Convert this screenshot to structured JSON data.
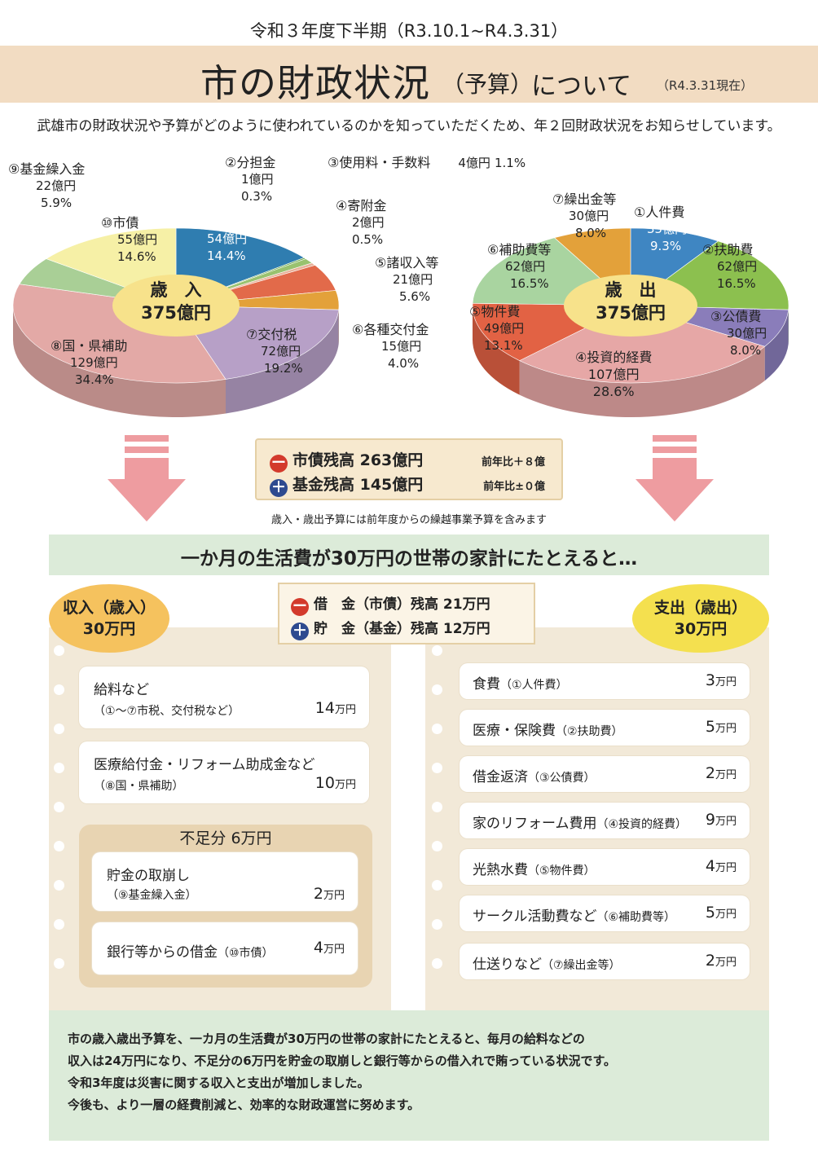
{
  "header": {
    "period": "令和３年度下半期（R3.10.1~R4.3.31）",
    "title": "市の財政状況",
    "title_paren": "（予算）",
    "title_rest": "について",
    "as_of": "（R4.3.31現在）",
    "intro": "武雄市の財政状況や予算がどのように使われているのかを知っていただくため、年２回財政状況をお知らせしています。"
  },
  "colors": {
    "tax": "#2f7db0",
    "grant": "#b7a0c7",
    "subsidy": "#e3a9a6",
    "fund": "#a9cf96",
    "bond": "#f6f0a6",
    "share": "#6ba84a",
    "fee": "#99c26f",
    "donation": "#e8b29a",
    "misc": "#e26a4a",
    "transfer": "#e3a13a",
    "labor": "#3f86c2",
    "welfare": "#8cc04f",
    "debtservice": "#8a7dba",
    "invest": "#e6a7a6",
    "goods": "#e26244",
    "aid": "#a9d4a0",
    "outtransfer": "#e3a13a",
    "banner": "#dcebd9",
    "title_band": "#f2dcc2",
    "arrow": "#ee9ca0"
  },
  "chart_data": [
    {
      "type": "pie",
      "title": "歳入 375億円",
      "center_label": "歳　入",
      "center_value": "375億円",
      "slices": [
        {
          "label": "①市税",
          "amount": "54億円",
          "percent": "14.4%",
          "value": 54,
          "color": "#2f7db0"
        },
        {
          "label": "②分担金",
          "amount": "1億円",
          "percent": "0.3%",
          "value": 1,
          "color": "#6ba84a"
        },
        {
          "label": "③使用料・手数料",
          "amount": "4億円",
          "percent": "1.1%",
          "value": 4,
          "color": "#99c26f"
        },
        {
          "label": "④寄附金",
          "amount": "2億円",
          "percent": "0.5%",
          "value": 2,
          "color": "#e8b29a"
        },
        {
          "label": "⑤諸収入等",
          "amount": "21億円",
          "percent": "5.6%",
          "value": 21,
          "color": "#e26a4a"
        },
        {
          "label": "⑥各種交付金",
          "amount": "15億円",
          "percent": "4.0%",
          "value": 15,
          "color": "#e3a13a"
        },
        {
          "label": "⑦交付税",
          "amount": "72億円",
          "percent": "19.2%",
          "value": 72,
          "color": "#b7a0c7"
        },
        {
          "label": "⑧国・県補助",
          "amount": "129億円",
          "percent": "34.4%",
          "value": 129,
          "color": "#e3a9a6"
        },
        {
          "label": "⑨基金繰入金",
          "amount": "22億円",
          "percent": "5.9%",
          "value": 22,
          "color": "#a9cf96"
        },
        {
          "label": "⑩市債",
          "amount": "55億円",
          "percent": "14.6%",
          "value": 55,
          "color": "#f6f0a6"
        }
      ]
    },
    {
      "type": "pie",
      "title": "歳出 375億円",
      "center_label": "歳　出",
      "center_value": "375億円",
      "slices": [
        {
          "label": "①人件費",
          "amount": "35億円",
          "percent": "9.3%",
          "value": 35,
          "color": "#3f86c2"
        },
        {
          "label": "②扶助費",
          "amount": "62億円",
          "percent": "16.5%",
          "value": 62,
          "color": "#8cc04f"
        },
        {
          "label": "③公債費",
          "amount": "30億円",
          "percent": "8.0%",
          "value": 30,
          "color": "#8a7dba"
        },
        {
          "label": "④投資的経費",
          "amount": "107億円",
          "percent": "28.6%",
          "value": 107,
          "color": "#e6a7a6"
        },
        {
          "label": "⑤物件費",
          "amount": "49億円",
          "percent": "13.1%",
          "value": 49,
          "color": "#e26244"
        },
        {
          "label": "⑥補助費等",
          "amount": "62億円",
          "percent": "16.5%",
          "value": 62,
          "color": "#a9d4a0"
        },
        {
          "label": "⑦繰出金等",
          "amount": "30億円",
          "percent": "8.0%",
          "value": 30,
          "color": "#e3a13a"
        }
      ]
    }
  ],
  "balances": {
    "debt_sign": "ー",
    "debt_label": "市債残高 263億円",
    "debt_cmp": "前年比＋８億",
    "fund_sign": "＋",
    "fund_label": "基金残高 145億円",
    "fund_cmp": "前年比±０億",
    "note": "歳入・歳出予算には前年度からの繰越事業予算を含みます"
  },
  "household": {
    "banner": "一か月の生活費が30万円の世帯の家計にたとえると…",
    "income_title": "収入（歳入）",
    "income_total": "30万円",
    "expense_title": "支出（歳出）",
    "expense_total": "30万円",
    "loan_sign": "ー",
    "loan_label": "借　金（市債）残高 21万円",
    "savings_sign": "＋",
    "savings_label": "貯　金（基金）残高 12万円",
    "income": [
      {
        "label": "給料など",
        "detail": "（①～⑦市税、交付税など）",
        "value": "14",
        "unit": "万円"
      },
      {
        "label": "医療給付金・リフォーム助成金など",
        "detail": "（⑧国・県補助）",
        "value": "10",
        "unit": "万円"
      }
    ],
    "shortage_title": "不足分 6万円",
    "shortage": [
      {
        "label": "貯金の取崩し",
        "detail": "（⑨基金繰入金）",
        "value": "2",
        "unit": "万円"
      },
      {
        "label": "銀行等からの借金",
        "detail": "（⑩市債）",
        "value": "4",
        "unit": "万円"
      }
    ],
    "expenses": [
      {
        "label": "食費",
        "detail": "（①人件費）",
        "value": "3",
        "unit": "万円"
      },
      {
        "label": "医療・保険費",
        "detail": "（②扶助費）",
        "value": "5",
        "unit": "万円"
      },
      {
        "label": "借金返済",
        "detail": "（③公債費）",
        "value": "2",
        "unit": "万円"
      },
      {
        "label": "家のリフォーム費用",
        "detail": "（④投資的経費）",
        "value": "9",
        "unit": "万円"
      },
      {
        "label": "光熱水費",
        "detail": "（⑤物件費）",
        "value": "4",
        "unit": "万円"
      },
      {
        "label": "サークル活動費など",
        "detail": "（⑥補助費等）",
        "value": "5",
        "unit": "万円"
      },
      {
        "label": "仕送りなど",
        "detail": "（⑦繰出金等）",
        "value": "2",
        "unit": "万円"
      }
    ]
  },
  "summary": [
    "市の歳入歳出予算を、一カ月の生活費が30万円の世帯の家計にたとえると、毎月の給料などの",
    "収入は24万円になり、不足分の6万円を貯金の取崩しと銀行等からの借入れで賄っている状況です。",
    "令和3年度は災害に関する収入と支出が増加しました。",
    "今後も、より一層の経費削減と、効率的な財政運営に努めます。"
  ]
}
